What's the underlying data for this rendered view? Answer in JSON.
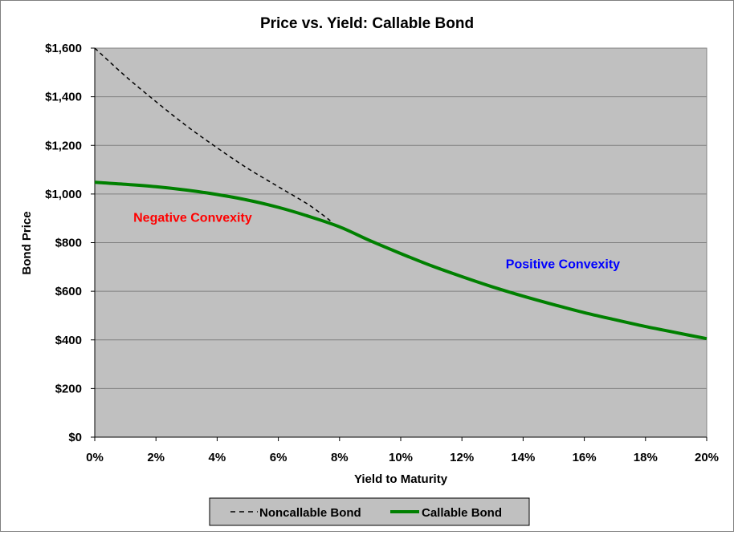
{
  "chart_data": {
    "type": "line",
    "title": "Price vs. Yield: Callable Bond",
    "xlabel": "Yield to Maturity",
    "ylabel": "Bond Price",
    "xlim": [
      0,
      20
    ],
    "ylim": [
      0,
      1600
    ],
    "x_ticks": [
      "0%",
      "2%",
      "4%",
      "6%",
      "8%",
      "10%",
      "12%",
      "14%",
      "16%",
      "18%",
      "20%"
    ],
    "y_ticks": [
      "$0",
      "$200",
      "$400",
      "$600",
      "$800",
      "$1,000",
      "$1,200",
      "$1,400",
      "$1,600"
    ],
    "x_tick_values": [
      0,
      2,
      4,
      6,
      8,
      10,
      12,
      14,
      16,
      18,
      20
    ],
    "y_tick_values": [
      0,
      200,
      400,
      600,
      800,
      1000,
      1200,
      1400,
      1600
    ],
    "grid": "horizontal",
    "plot_background": "#c0c0c0",
    "legend_position": "bottom",
    "series": [
      {
        "name": "Noncallable Bond",
        "style": "dashed",
        "color": "#000000",
        "x": [
          0,
          1,
          2,
          3,
          4,
          5,
          6,
          7,
          7.7
        ],
        "y": [
          1600,
          1485,
          1380,
          1280,
          1190,
          1105,
          1030,
          955,
          890
        ]
      },
      {
        "name": "Callable Bond",
        "style": "solid",
        "color": "#008000",
        "x": [
          0,
          1,
          2,
          3,
          4,
          5,
          6,
          7,
          8,
          9,
          10,
          11,
          12,
          13,
          14,
          15,
          16,
          17,
          18,
          19,
          20
        ],
        "y": [
          1048,
          1040,
          1030,
          1016,
          998,
          975,
          945,
          908,
          865,
          808,
          755,
          705,
          660,
          618,
          580,
          545,
          512,
          483,
          455,
          430,
          405
        ]
      }
    ],
    "annotations": [
      {
        "text": "Negative Convexity",
        "color": "#ff0000",
        "x": 3.2,
        "y": 885
      },
      {
        "text": "Positive Convexity",
        "color": "#0000ff",
        "x": 15.3,
        "y": 695
      }
    ]
  }
}
